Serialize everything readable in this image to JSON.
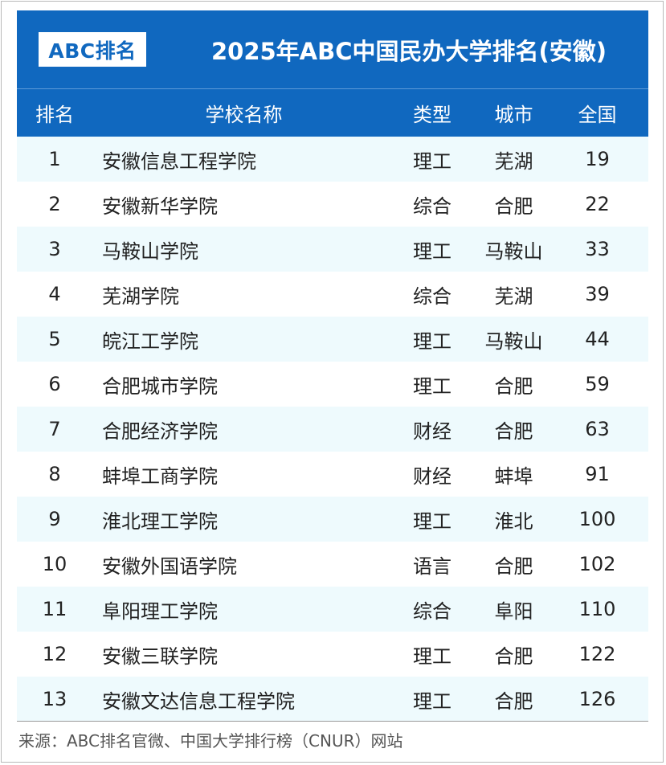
{
  "logo_text": "ABC排名",
  "title": "2025年ABC中国民办大学排名(安徽)",
  "columns": [
    "排名",
    "学校名称",
    "类型",
    "城市",
    "全国"
  ],
  "rows": [
    {
      "rank": "1",
      "name": "安徽信息工程学院",
      "type": "理工",
      "city": "芜湖",
      "national": "19"
    },
    {
      "rank": "2",
      "name": "安徽新华学院",
      "type": "综合",
      "city": "合肥",
      "national": "22"
    },
    {
      "rank": "3",
      "name": "马鞍山学院",
      "type": "理工",
      "city": "马鞍山",
      "national": "33"
    },
    {
      "rank": "4",
      "name": "芜湖学院",
      "type": "综合",
      "city": "芜湖",
      "national": "39"
    },
    {
      "rank": "5",
      "name": "皖江工学院",
      "type": "理工",
      "city": "马鞍山",
      "national": "44"
    },
    {
      "rank": "6",
      "name": "合肥城市学院",
      "type": "理工",
      "city": "合肥",
      "national": "59"
    },
    {
      "rank": "7",
      "name": "合肥经济学院",
      "type": "财经",
      "city": "合肥",
      "national": "63"
    },
    {
      "rank": "8",
      "name": "蚌埠工商学院",
      "type": "财经",
      "city": "蚌埠",
      "national": "91"
    },
    {
      "rank": "9",
      "name": "淮北理工学院",
      "type": "理工",
      "city": "淮北",
      "national": "100"
    },
    {
      "rank": "10",
      "name": "安徽外国语学院",
      "type": "语言",
      "city": "合肥",
      "national": "102"
    },
    {
      "rank": "11",
      "name": "阜阳理工学院",
      "type": "综合",
      "city": "阜阳",
      "national": "110"
    },
    {
      "rank": "12",
      "name": "安徽三联学院",
      "type": "理工",
      "city": "合肥",
      "national": "122"
    },
    {
      "rank": "13",
      "name": "安徽文达信息工程学院",
      "type": "理工",
      "city": "合肥",
      "national": "126"
    }
  ],
  "source": "来源：ABC排名官微、中国大学排行榜（CNUR）网站",
  "colors": {
    "header_bg": "#1068bf",
    "stripe_bg": "#eefafd"
  }
}
